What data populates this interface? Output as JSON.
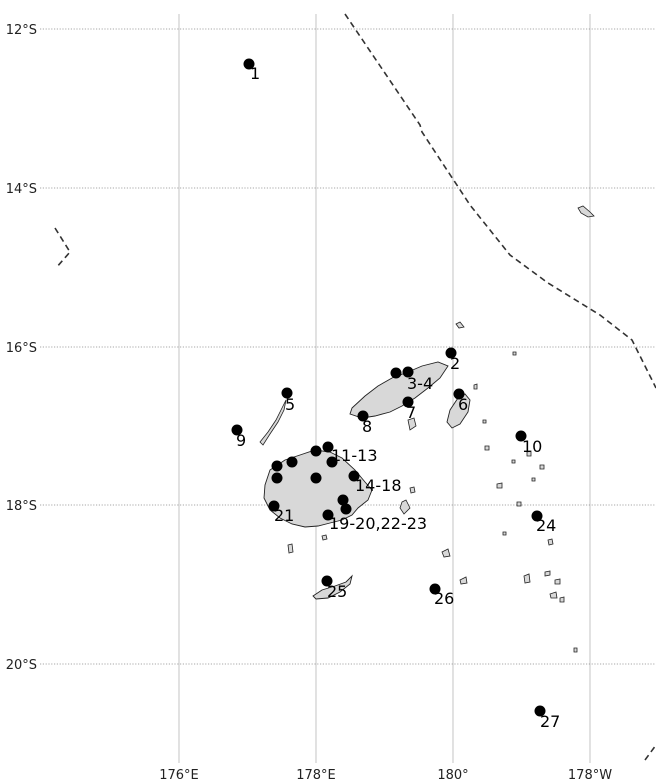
{
  "axes": {
    "lat_labels": [
      "12°S",
      "14°S",
      "16°S",
      "18°S",
      "20°S"
    ],
    "lon_labels": [
      "176°E",
      "178°E",
      "180°",
      "178°W"
    ]
  },
  "sites": [
    {
      "label": "1"
    },
    {
      "label": "2"
    },
    {
      "label": "3-4"
    },
    {
      "label": "5"
    },
    {
      "label": "6"
    },
    {
      "label": "7"
    },
    {
      "label": "8"
    },
    {
      "label": "9"
    },
    {
      "label": "10"
    },
    {
      "label": "11-13"
    },
    {
      "label": "14-18"
    },
    {
      "label": "19-20,22-23"
    },
    {
      "label": "21"
    },
    {
      "label": "24"
    },
    {
      "label": "25"
    },
    {
      "label": "26"
    },
    {
      "label": "27"
    }
  ]
}
